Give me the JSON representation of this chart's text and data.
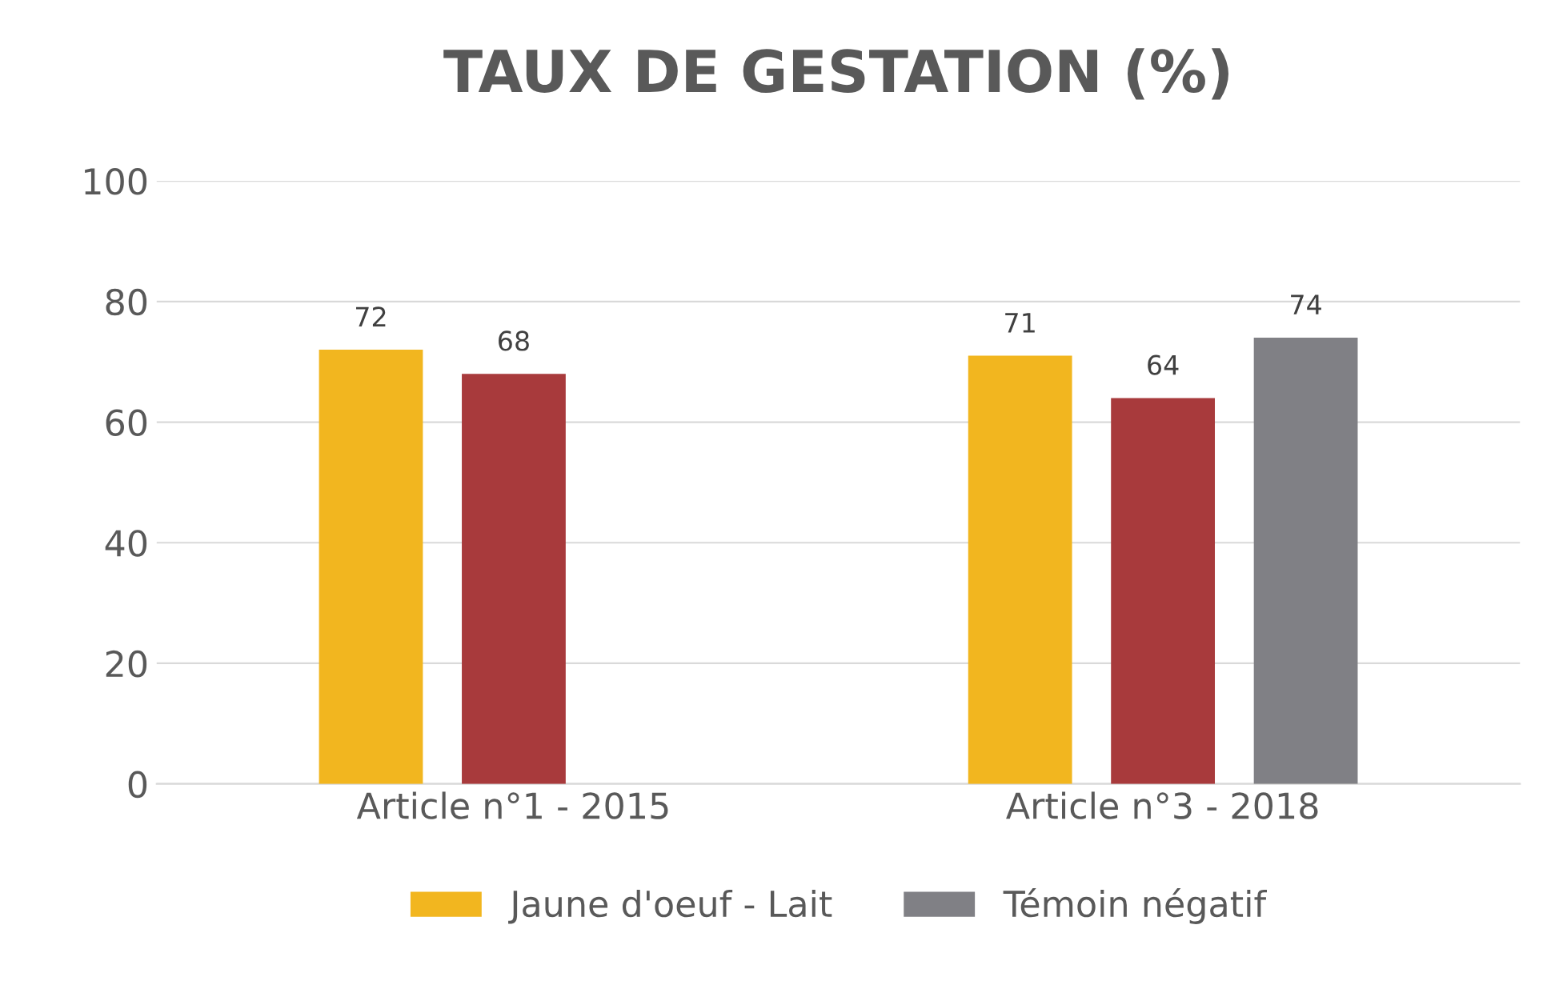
{
  "chart_data": {
    "type": "bar",
    "title": "TAUX DE GESTATION (%)",
    "categories": [
      "Article n°1 - 2015",
      "Article n°3 - 2018"
    ],
    "series": [
      {
        "name": "Jaune d'oeuf - Lait",
        "color": "#f2b61f",
        "values": [
          72,
          71
        ]
      },
      {
        "color": "#a83a3c",
        "values": [
          68,
          64
        ]
      },
      {
        "name": "Témoin négatif",
        "color": "#808085",
        "values": [
          null,
          74
        ]
      }
    ],
    "ylim": [
      0,
      100
    ],
    "yticks": [
      0,
      20,
      40,
      60,
      80,
      100
    ],
    "grid": "y",
    "legend": "bottom",
    "data_labels": true
  }
}
